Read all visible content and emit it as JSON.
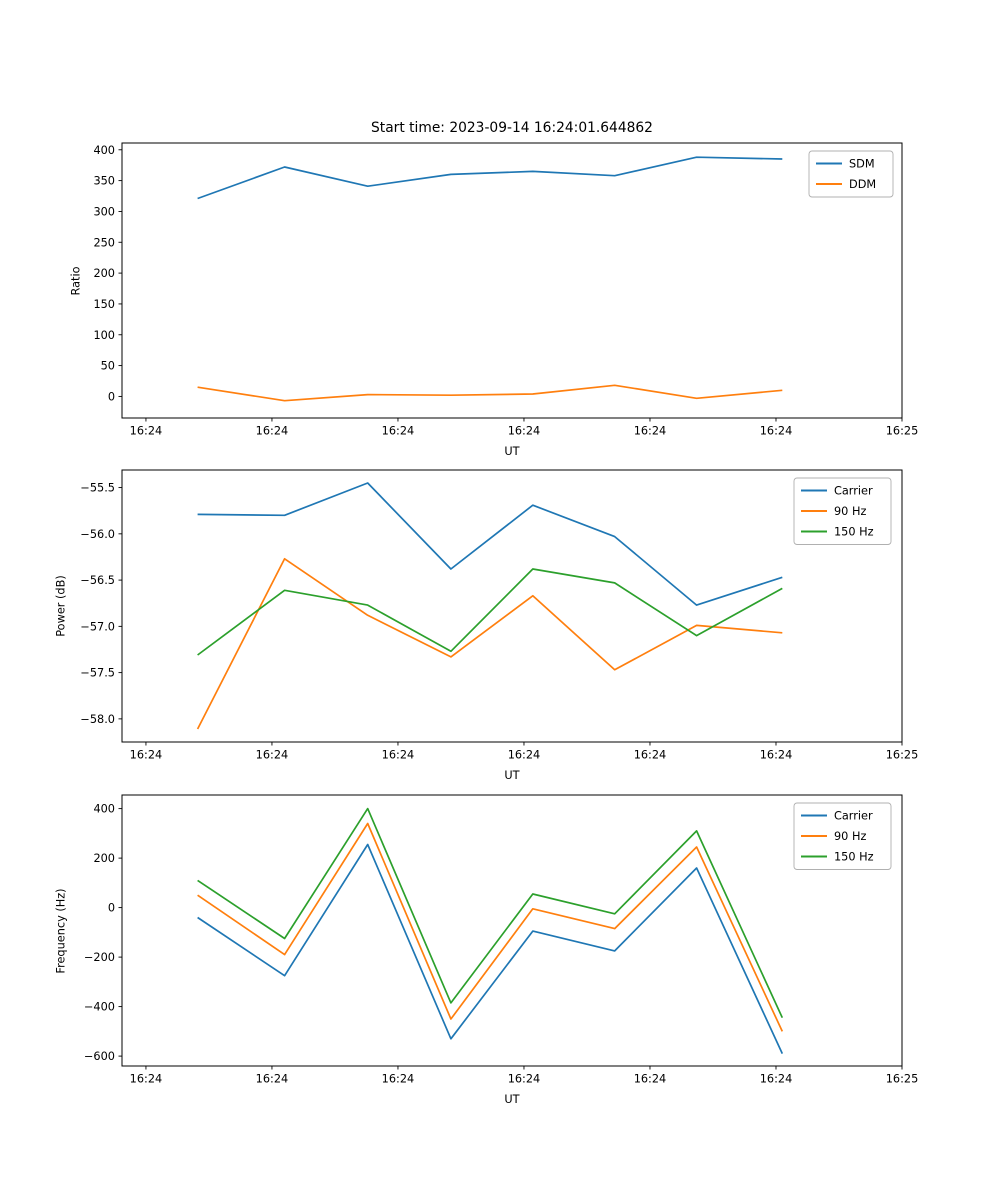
{
  "figure_title": "Start time: 2023-09-14 16:24:01.644862",
  "chart_data": [
    {
      "type": "line",
      "title": "Start time: 2023-09-14 16:24:01.644862",
      "xlabel": "UT",
      "ylabel": "Ratio",
      "xlim": [
        -1.9,
        60.0
      ],
      "ylim": [
        -35,
        411
      ],
      "x_seconds_after_1624": [
        4.1,
        11.0,
        17.6,
        24.2,
        30.7,
        37.2,
        43.7,
        50.5
      ],
      "x_ticks": {
        "values": [
          0,
          10,
          20,
          30,
          40,
          50,
          60
        ],
        "labels": [
          "16:24",
          "16:24",
          "16:24",
          "16:24",
          "16:24",
          "16:24",
          "16:25"
        ]
      },
      "y_ticks": {
        "values": [
          400,
          350,
          300,
          250,
          200,
          150,
          100,
          50,
          0
        ],
        "labels": [
          "400",
          "350",
          "300",
          "250",
          "200",
          "150",
          "100",
          "50",
          "0"
        ]
      },
      "grid": false,
      "legend_position": "upper right",
      "series": [
        {
          "name": "SDM",
          "color": "#1f77b4",
          "values": [
            321,
            372,
            341,
            360,
            365,
            358,
            388,
            385
          ]
        },
        {
          "name": "DDM",
          "color": "#ff7f0e",
          "values": [
            15,
            -7,
            3,
            2,
            4,
            18,
            -3,
            10
          ]
        }
      ]
    },
    {
      "type": "line",
      "title": "",
      "xlabel": "UT",
      "ylabel": "Power (dB)",
      "xlim": [
        -1.9,
        60.0
      ],
      "ylim": [
        -58.25,
        -55.31
      ],
      "x_seconds_after_1624": [
        4.1,
        11.0,
        17.6,
        24.2,
        30.7,
        37.2,
        43.7,
        50.5
      ],
      "x_ticks": {
        "values": [
          0,
          10,
          20,
          30,
          40,
          50,
          60
        ],
        "labels": [
          "16:24",
          "16:24",
          "16:24",
          "16:24",
          "16:24",
          "16:24",
          "16:25"
        ]
      },
      "y_ticks": {
        "values": [
          -55.5,
          -56.0,
          -56.5,
          -57.0,
          -57.5,
          -58.0
        ],
        "labels": [
          "−55.5",
          "−56.0",
          "−56.5",
          "−57.0",
          "−57.5",
          "−58.0"
        ]
      },
      "grid": false,
      "legend_position": "upper right",
      "series": [
        {
          "name": "Carrier",
          "color": "#1f77b4",
          "values": [
            -55.79,
            -55.8,
            -55.45,
            -56.38,
            -55.69,
            -56.03,
            -56.77,
            -56.47
          ]
        },
        {
          "name": "90 Hz",
          "color": "#ff7f0e",
          "values": [
            -58.11,
            -56.27,
            -56.88,
            -57.33,
            -56.67,
            -57.47,
            -56.99,
            -57.07
          ]
        },
        {
          "name": "150 Hz",
          "color": "#2ca02c",
          "values": [
            -57.31,
            -56.61,
            -56.77,
            -57.27,
            -56.38,
            -56.53,
            -57.1,
            -56.59
          ]
        }
      ]
    },
    {
      "type": "line",
      "title": "",
      "xlabel": "UT",
      "ylabel": "Frequency (Hz)",
      "xlim": [
        -1.9,
        60.0
      ],
      "ylim": [
        -640,
        455
      ],
      "x_seconds_after_1624": [
        4.1,
        11.0,
        17.6,
        24.2,
        30.7,
        37.2,
        43.7,
        50.5
      ],
      "x_ticks": {
        "values": [
          0,
          10,
          20,
          30,
          40,
          50,
          60
        ],
        "labels": [
          "16:24",
          "16:24",
          "16:24",
          "16:24",
          "16:24",
          "16:24",
          "16:25"
        ]
      },
      "y_ticks": {
        "values": [
          400,
          200,
          0,
          -200,
          -400,
          -600
        ],
        "labels": [
          "400",
          "200",
          "0",
          "−200",
          "−400",
          "−600"
        ]
      },
      "grid": false,
      "legend_position": "upper right",
      "series": [
        {
          "name": "Carrier",
          "color": "#1f77b4",
          "values": [
            -40,
            -275,
            255,
            -530,
            -95,
            -175,
            160,
            -590
          ]
        },
        {
          "name": "90 Hz",
          "color": "#ff7f0e",
          "values": [
            50,
            -190,
            340,
            -450,
            -5,
            -85,
            245,
            -500
          ]
        },
        {
          "name": "150 Hz",
          "color": "#2ca02c",
          "values": [
            110,
            -125,
            400,
            -385,
            55,
            -25,
            310,
            -445
          ]
        }
      ]
    }
  ]
}
